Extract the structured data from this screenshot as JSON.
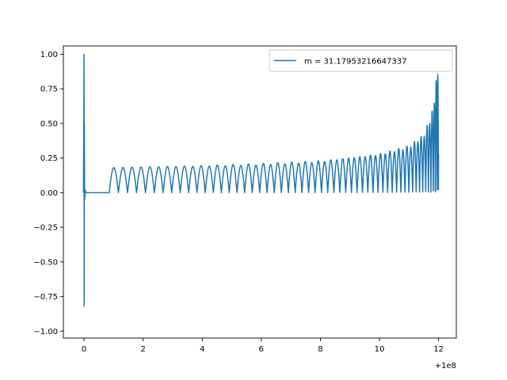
{
  "chart_data": {
    "type": "line",
    "title": "",
    "xlabel": "",
    "ylabel": "",
    "x_offset_label": "+1e8",
    "xlim": [
      -0.7,
      12.6
    ],
    "ylim": [
      -1.05,
      1.06
    ],
    "x_ticks": [
      0,
      2,
      4,
      6,
      8,
      10,
      12
    ],
    "x_tick_labels": [
      "0",
      "2",
      "4",
      "6",
      "8",
      "10",
      "12"
    ],
    "y_ticks": [
      1.0,
      0.75,
      0.5,
      0.25,
      0.0,
      -0.25,
      -0.5,
      -0.75,
      -1.0
    ],
    "y_tick_labels": [
      "1.00",
      "0.75",
      "0.50",
      "0.25",
      "0.00",
      "−0.25",
      "−0.50",
      "−0.75",
      "−1.00"
    ],
    "grid": false,
    "legend_position": "upper right",
    "series": [
      {
        "name": "m = 31.17953216647337",
        "color": "#1f77b4",
        "description": "chirp signal",
        "initial_spike": {
          "x": 0.0,
          "max": 1.0,
          "min": -0.82
        },
        "quiet_until": 0.8,
        "start": {
          "x": 0.85,
          "amplitude": 0.18
        },
        "envelope": [
          {
            "x": 0.85,
            "upper": 0.18,
            "lower": -0.18
          },
          {
            "x": 2.0,
            "upper": 0.185,
            "lower": -0.185
          },
          {
            "x": 4.0,
            "upper": 0.195,
            "lower": -0.19
          },
          {
            "x": 6.0,
            "upper": 0.21,
            "lower": -0.2
          },
          {
            "x": 8.0,
            "upper": 0.23,
            "lower": -0.22
          },
          {
            "x": 10.0,
            "upper": 0.27,
            "lower": -0.28
          },
          {
            "x": 11.0,
            "upper": 0.32,
            "lower": -0.34
          },
          {
            "x": 11.5,
            "upper": 0.4,
            "lower": -0.42
          },
          {
            "x": 11.8,
            "upper": 0.55,
            "lower": -0.6
          },
          {
            "x": 12.0,
            "upper": 0.9,
            "lower": -0.95
          }
        ]
      }
    ]
  }
}
